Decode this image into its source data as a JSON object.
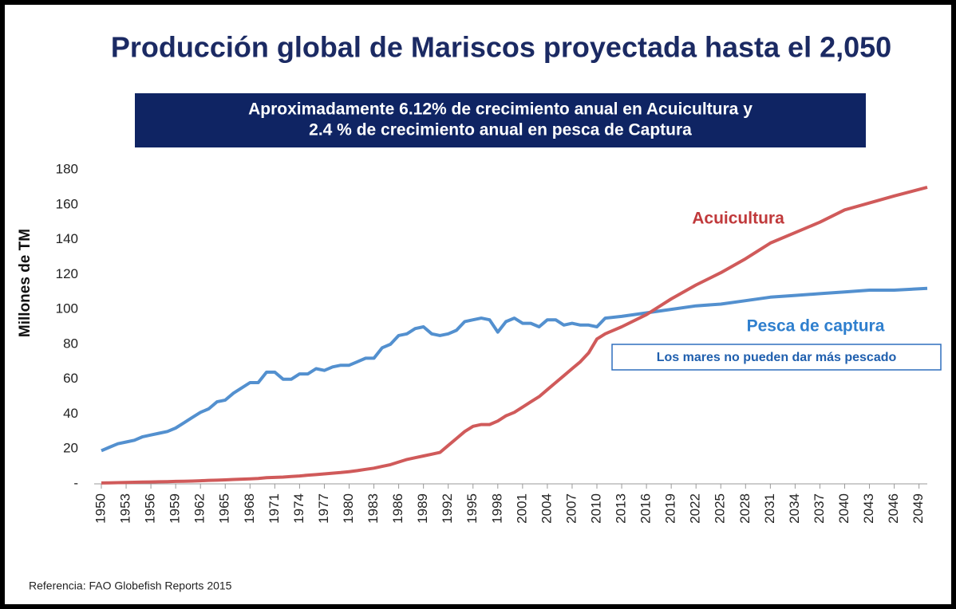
{
  "chart_data": {
    "type": "line",
    "title": "Producción global de Mariscos proyectada hasta el 2,050",
    "subtitle": [
      "Aproximadamente 6.12% de crecimiento anual en Acuicultura y",
      "2.4 % de crecimiento anual en pesca de Captura"
    ],
    "y_label": "Millones de TM",
    "annotations": [
      "Los mares no pueden dar más pescado"
    ],
    "footnote": "Referencia: FAO Globefish Reports 2015",
    "x": [
      1950,
      1951,
      1952,
      1953,
      1954,
      1955,
      1956,
      1957,
      1958,
      1959,
      1960,
      1961,
      1962,
      1963,
      1964,
      1965,
      1966,
      1967,
      1968,
      1969,
      1970,
      1971,
      1972,
      1973,
      1974,
      1975,
      1976,
      1977,
      1978,
      1979,
      1980,
      1981,
      1982,
      1983,
      1984,
      1985,
      1986,
      1987,
      1988,
      1989,
      1990,
      1991,
      1992,
      1993,
      1994,
      1995,
      1996,
      1997,
      1998,
      1999,
      2000,
      2001,
      2002,
      2003,
      2004,
      2005,
      2006,
      2007,
      2008,
      2009,
      2010,
      2011,
      2013,
      2016,
      2019,
      2022,
      2025,
      2028,
      2031,
      2034,
      2037,
      2040,
      2043,
      2046,
      2050
    ],
    "series": [
      {
        "name": "Pesca de captura",
        "color": "#5390cf",
        "values": [
          19,
          21,
          23,
          24,
          25,
          27,
          28,
          29,
          30,
          32,
          35,
          38,
          41,
          43,
          47,
          48,
          52,
          55,
          58,
          58,
          64,
          64,
          60,
          60,
          63,
          63,
          66,
          65,
          67,
          68,
          68,
          70,
          72,
          72,
          78,
          80,
          85,
          86,
          89,
          90,
          86,
          85,
          86,
          88,
          93,
          94,
          95,
          94,
          87,
          93,
          95,
          92,
          92,
          90,
          94,
          94,
          91,
          92,
          91,
          91,
          90,
          95,
          96,
          98,
          100,
          102,
          103,
          105,
          107,
          108,
          109,
          110,
          111,
          111,
          112
        ]
      },
      {
        "name": "Acuicultura",
        "color": "#d05a5a",
        "values": [
          0.5,
          0.6,
          0.7,
          0.8,
          0.9,
          1,
          1.1,
          1.2,
          1.3,
          1.4,
          1.5,
          1.6,
          1.8,
          2,
          2.1,
          2.3,
          2.5,
          2.7,
          2.9,
          3.1,
          3.5,
          3.7,
          3.9,
          4.2,
          4.5,
          5,
          5.3,
          5.7,
          6.1,
          6.5,
          7,
          7.6,
          8.3,
          9,
          10,
          11,
          12.5,
          14,
          15,
          16,
          17,
          18,
          22,
          26,
          30,
          33,
          34,
          34,
          36,
          39,
          41,
          44,
          47,
          50,
          54,
          58,
          62,
          66,
          70,
          75,
          83,
          86,
          90,
          97,
          106,
          114,
          121,
          129,
          138,
          144,
          150,
          157,
          161,
          165,
          170
        ]
      }
    ],
    "xlim": [
      1950,
      2050
    ],
    "xticks": [
      1950,
      1953,
      1956,
      1959,
      1962,
      1965,
      1968,
      1971,
      1974,
      1977,
      1980,
      1983,
      1986,
      1989,
      1992,
      1995,
      1998,
      2001,
      2004,
      2007,
      2010,
      2013,
      2016,
      2019,
      2022,
      2025,
      2028,
      2031,
      2034,
      2037,
      2040,
      2043,
      2046,
      2049
    ],
    "ylim": [
      0,
      180
    ],
    "yticks": [
      {
        "value": 0,
        "label": "-"
      },
      20,
      40,
      60,
      80,
      100,
      120,
      140,
      160,
      180
    ]
  }
}
